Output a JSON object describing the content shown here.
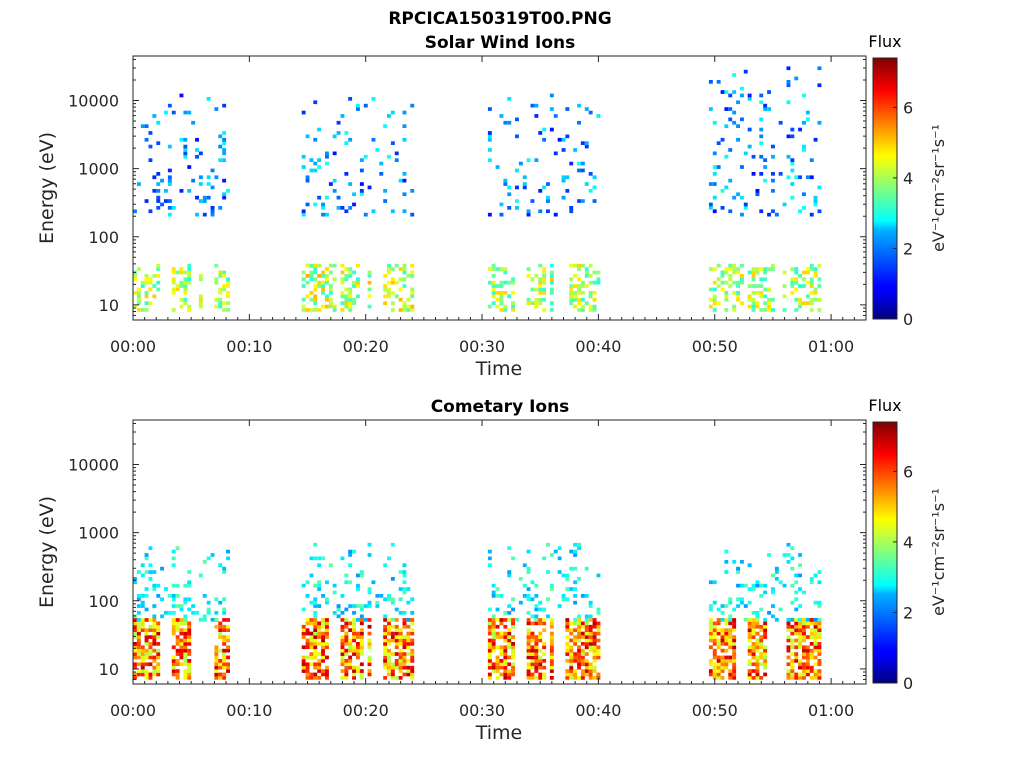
{
  "figure_title": "RPCICA150319T00.PNG",
  "chart_data": [
    {
      "type": "heatmap",
      "title": "Solar Wind Ions",
      "xlabel": "Time",
      "ylabel": "Energy (eV)",
      "yscale": "log",
      "x_unit": "minutes",
      "xlim": [
        0,
        63
      ],
      "ylim": [
        6,
        45000
      ],
      "xticks": [
        0,
        10,
        20,
        30,
        40,
        50,
        60
      ],
      "xtick_labels": [
        "00:00",
        "00:10",
        "00:20",
        "00:30",
        "00:40",
        "00:50",
        "01:00"
      ],
      "yticks": [
        10,
        100,
        1000,
        10000
      ],
      "ytick_labels": [
        "10",
        "100",
        "1000",
        "10000"
      ],
      "colorbar": {
        "title": "Flux",
        "label": "eV⁻¹cm⁻²sr⁻¹s⁻¹",
        "range": [
          0,
          7.4
        ],
        "ticks": [
          0,
          2,
          4,
          6
        ],
        "tick_labels": [
          "0",
          "2",
          "4",
          "6"
        ],
        "colormap": "jet"
      },
      "bursts": [
        {
          "start": 0,
          "end": 8,
          "low_energy": [
            8,
            40
          ],
          "low_flux": [
            3,
            5
          ],
          "high_energy": [
            200,
            12000
          ],
          "high_flux": [
            1,
            2.8
          ]
        },
        {
          "start": 14.5,
          "end": 24,
          "low_energy": [
            8,
            40
          ],
          "low_flux": [
            3,
            5.2
          ],
          "high_energy": [
            200,
            15000
          ],
          "high_flux": [
            1,
            3
          ]
        },
        {
          "start": 30.5,
          "end": 40,
          "low_energy": [
            8,
            40
          ],
          "low_flux": [
            3,
            5
          ],
          "high_energy": [
            200,
            12000
          ],
          "high_flux": [
            1,
            3
          ]
        },
        {
          "start": 49.5,
          "end": 59,
          "low_energy": [
            8,
            40
          ],
          "low_flux": [
            3,
            5
          ],
          "high_energy": [
            200,
            30000
          ],
          "high_flux": [
            1,
            3
          ]
        }
      ]
    },
    {
      "type": "heatmap",
      "title": "Cometary Ions",
      "xlabel": "Time",
      "ylabel": "Energy (eV)",
      "yscale": "log",
      "x_unit": "minutes",
      "xlim": [
        0,
        63
      ],
      "ylim": [
        6,
        45000
      ],
      "xticks": [
        0,
        10,
        20,
        30,
        40,
        50,
        60
      ],
      "xtick_labels": [
        "00:00",
        "00:10",
        "00:20",
        "00:30",
        "00:40",
        "00:50",
        "01:00"
      ],
      "yticks": [
        10,
        100,
        1000,
        10000
      ],
      "ytick_labels": [
        "10",
        "100",
        "1000",
        "10000"
      ],
      "colorbar": {
        "title": "Flux",
        "label": "eV⁻¹cm⁻²sr⁻¹s⁻¹",
        "range": [
          0,
          7.4
        ],
        "ticks": [
          0,
          2,
          4,
          6
        ],
        "tick_labels": [
          "0",
          "2",
          "4",
          "6"
        ],
        "colormap": "jet"
      },
      "bursts": [
        {
          "start": 0,
          "end": 8,
          "low_energy": [
            7,
            50
          ],
          "low_flux": [
            4,
            7
          ],
          "high_energy": [
            50,
            700
          ],
          "high_flux": [
            2,
            3.5
          ]
        },
        {
          "start": 14.5,
          "end": 24,
          "low_energy": [
            7,
            50
          ],
          "low_flux": [
            4,
            7
          ],
          "high_energy": [
            50,
            700
          ],
          "high_flux": [
            2,
            3.5
          ]
        },
        {
          "start": 30.5,
          "end": 40,
          "low_energy": [
            7,
            50
          ],
          "low_flux": [
            4,
            7
          ],
          "high_energy": [
            50,
            700
          ],
          "high_flux": [
            2,
            3.5
          ]
        },
        {
          "start": 49.5,
          "end": 59,
          "low_energy": [
            7,
            50
          ],
          "low_flux": [
            4,
            7
          ],
          "high_energy": [
            50,
            700
          ],
          "high_flux": [
            2,
            3.5
          ]
        }
      ]
    }
  ]
}
